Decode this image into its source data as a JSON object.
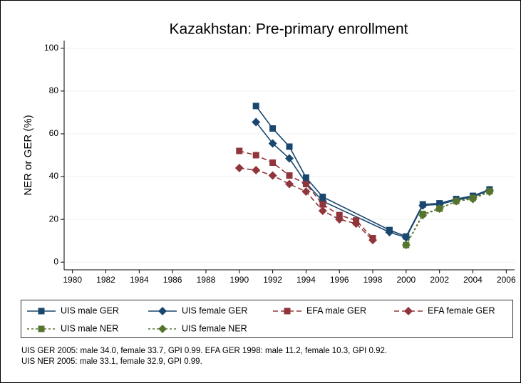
{
  "chart_data": {
    "type": "line",
    "title": "Kazakhstan: Pre-primary enrollment",
    "y_label": "NER or GER (%)",
    "xlim": [
      1979.5,
      2006.5
    ],
    "ylim": [
      -3.6,
      103.6
    ],
    "xticks": [
      1980,
      1982,
      1984,
      1986,
      1988,
      1990,
      1992,
      1994,
      1996,
      1998,
      2000,
      2002,
      2004,
      2006
    ],
    "yticks": [
      0,
      20,
      40,
      60,
      80,
      100
    ],
    "grid": true,
    "series": [
      {
        "name": "UIS male GER",
        "color": "#1a476f",
        "marker": "square",
        "line_style": "solid",
        "x": [
          1991,
          1992,
          1993,
          1994,
          1995,
          1999,
          2000,
          2001,
          2002,
          2003,
          2004,
          2005
        ],
        "values": [
          73,
          62.5,
          54,
          39.5,
          30.5,
          15,
          12,
          27,
          27.5,
          29.5,
          31,
          34.0
        ]
      },
      {
        "name": "UIS female GER",
        "color": "#1a476f",
        "marker": "diamond",
        "line_style": "solid",
        "x": [
          1991,
          1992,
          1993,
          1994,
          1995,
          1999,
          2000,
          2001,
          2002,
          2003,
          2004,
          2005
        ],
        "values": [
          65.5,
          55.5,
          48.5,
          37,
          28.5,
          14,
          11.5,
          26.5,
          27,
          29,
          30.5,
          33.7
        ]
      },
      {
        "name": "EFA male GER",
        "color": "#90353b",
        "marker": "square",
        "line_style": "dash",
        "x": [
          1990,
          1991,
          1992,
          1993,
          1994,
          1995,
          1996,
          1997,
          1998
        ],
        "values": [
          52,
          50,
          46.5,
          40.5,
          36.5,
          27,
          22,
          19.5,
          11.2
        ]
      },
      {
        "name": "EFA female GER",
        "color": "#90353b",
        "marker": "diamond",
        "line_style": "dash",
        "x": [
          1990,
          1991,
          1992,
          1993,
          1994,
          1995,
          1996,
          1997,
          1998
        ],
        "values": [
          44,
          43,
          40.5,
          36.5,
          33,
          24,
          20,
          18,
          10.3
        ]
      },
      {
        "name": "UIS male NER",
        "color": "#55752f",
        "marker": "square",
        "line_style": "shortdash",
        "x": [
          2000,
          2001,
          2002,
          2003,
          2004,
          2005
        ],
        "values": [
          8,
          22.5,
          25,
          28.5,
          30,
          33.1
        ]
      },
      {
        "name": "UIS female NER",
        "color": "#55752f",
        "marker": "diamond",
        "line_style": "shortdash",
        "x": [
          2000,
          2001,
          2002,
          2003,
          2004,
          2005
        ],
        "values": [
          8,
          22,
          25,
          28.5,
          29.5,
          32.9
        ]
      }
    ],
    "notes": [
      "UIS GER 2005: male 34.0, female 33.7, GPI 0.99. EFA GER 1998: male 11.2, female 10.3, GPI 0.92.",
      "UIS NER 2005: male 33.1, female 32.9, GPI 0.99."
    ]
  }
}
